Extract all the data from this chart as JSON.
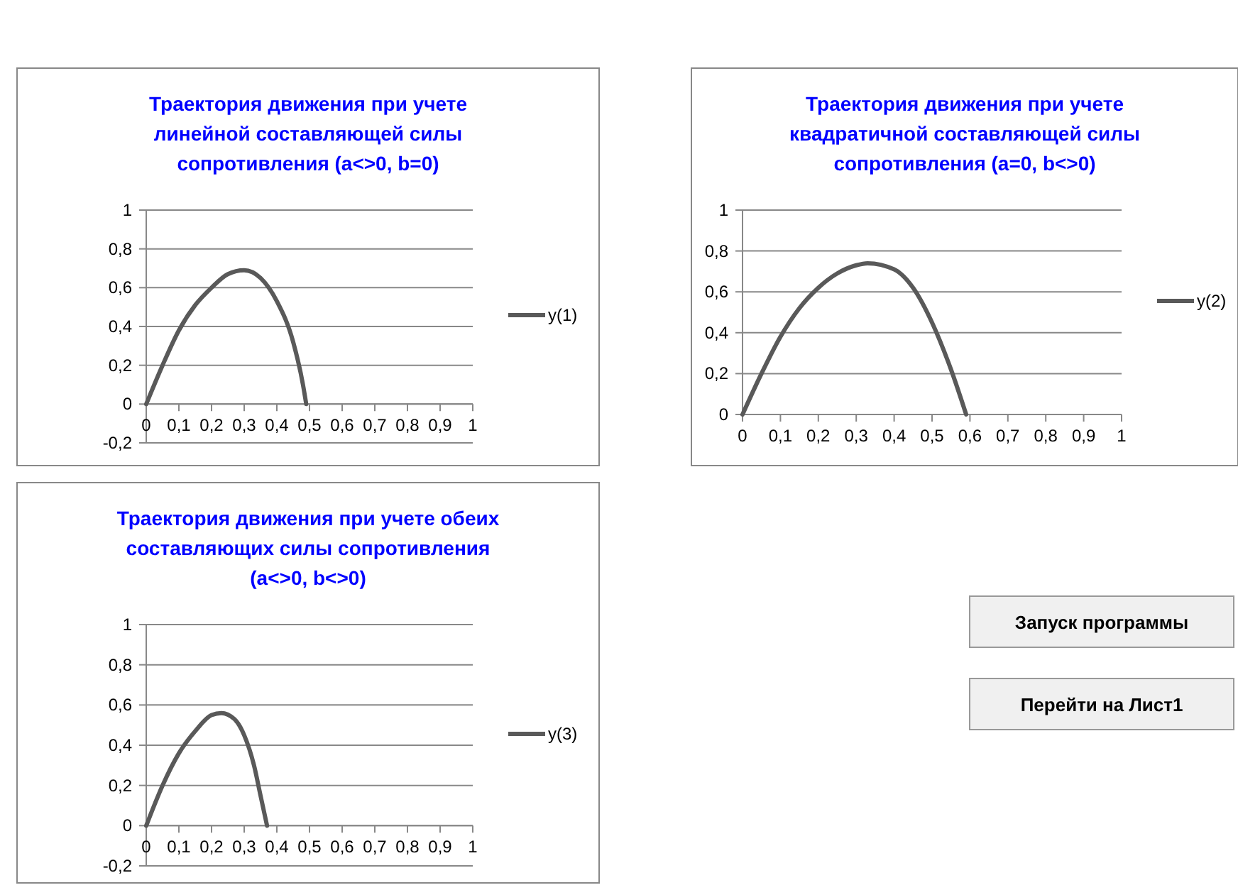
{
  "chart_data": [
    {
      "type": "line",
      "title": "Траектория движения при учете линейной составляющей силы сопротивления (a<>0, b=0)",
      "legend": "right",
      "grid": "y",
      "xlim": [
        0,
        1
      ],
      "xticks": [
        {
          "value": 0,
          "label": "0"
        },
        {
          "value": 0.1,
          "label": "0,1"
        },
        {
          "value": 0.2,
          "label": "0,2"
        },
        {
          "value": 0.3,
          "label": "0,3"
        },
        {
          "value": 0.4,
          "label": "0,4"
        },
        {
          "value": 0.5,
          "label": "0,5"
        },
        {
          "value": 0.6,
          "label": "0,6"
        },
        {
          "value": 0.7,
          "label": "0,7"
        },
        {
          "value": 0.8,
          "label": "0,8"
        },
        {
          "value": 0.9,
          "label": "0,9"
        },
        {
          "value": 1,
          "label": "1"
        }
      ],
      "ylim": [
        -0.2,
        1
      ],
      "yticks": [
        {
          "value": -0.2,
          "label": "-0,2"
        },
        {
          "value": 0,
          "label": "0"
        },
        {
          "value": 0.2,
          "label": "0,2"
        },
        {
          "value": 0.4,
          "label": "0,4"
        },
        {
          "value": 0.6,
          "label": "0,6"
        },
        {
          "value": 0.8,
          "label": "0,8"
        },
        {
          "value": 1,
          "label": "1"
        }
      ],
      "series": [
        {
          "name": "y(1)",
          "color": "#595959",
          "x": [
            0,
            0.05,
            0.1,
            0.15,
            0.2,
            0.25,
            0.3,
            0.35,
            0.4,
            0.45,
            0.48,
            0.49
          ],
          "values": [
            0,
            0.2,
            0.38,
            0.51,
            0.6,
            0.67,
            0.69,
            0.65,
            0.53,
            0.32,
            0.1,
            0
          ]
        }
      ]
    },
    {
      "type": "line",
      "title": "Траектория движения при учете квадратичной составляющей силы сопротивления (a=0, b<>0)",
      "legend": "right",
      "grid": "y",
      "xlim": [
        0,
        1
      ],
      "xticks": [
        {
          "value": 0,
          "label": "0"
        },
        {
          "value": 0.1,
          "label": "0,1"
        },
        {
          "value": 0.2,
          "label": "0,2"
        },
        {
          "value": 0.3,
          "label": "0,3"
        },
        {
          "value": 0.4,
          "label": "0,4"
        },
        {
          "value": 0.5,
          "label": "0,5"
        },
        {
          "value": 0.6,
          "label": "0,6"
        },
        {
          "value": 0.7,
          "label": "0,7"
        },
        {
          "value": 0.8,
          "label": "0,8"
        },
        {
          "value": 0.9,
          "label": "0,9"
        },
        {
          "value": 1,
          "label": "1"
        }
      ],
      "ylim": [
        0,
        1
      ],
      "yticks": [
        {
          "value": 0,
          "label": "0"
        },
        {
          "value": 0.2,
          "label": "0,2"
        },
        {
          "value": 0.4,
          "label": "0,4"
        },
        {
          "value": 0.6,
          "label": "0,6"
        },
        {
          "value": 0.8,
          "label": "0,8"
        },
        {
          "value": 1,
          "label": "1"
        }
      ],
      "series": [
        {
          "name": "y(2)",
          "color": "#595959",
          "x": [
            0,
            0.05,
            0.1,
            0.15,
            0.2,
            0.25,
            0.3,
            0.33,
            0.4,
            0.45,
            0.5,
            0.55,
            0.59
          ],
          "values": [
            0,
            0.2,
            0.38,
            0.52,
            0.62,
            0.69,
            0.73,
            0.74,
            0.71,
            0.62,
            0.45,
            0.22,
            0
          ]
        }
      ]
    },
    {
      "type": "line",
      "title": "Траектория движения при учете обеих составляющих силы сопротивления (a<>0, b<>0)",
      "legend": "right",
      "grid": "y",
      "xlim": [
        0,
        1
      ],
      "xticks": [
        {
          "value": 0,
          "label": "0"
        },
        {
          "value": 0.1,
          "label": "0,1"
        },
        {
          "value": 0.2,
          "label": "0,2"
        },
        {
          "value": 0.3,
          "label": "0,3"
        },
        {
          "value": 0.4,
          "label": "0,4"
        },
        {
          "value": 0.5,
          "label": "0,5"
        },
        {
          "value": 0.6,
          "label": "0,6"
        },
        {
          "value": 0.7,
          "label": "0,7"
        },
        {
          "value": 0.8,
          "label": "0,8"
        },
        {
          "value": 0.9,
          "label": "0,9"
        },
        {
          "value": 1,
          "label": "1"
        }
      ],
      "ylim": [
        -0.2,
        1
      ],
      "yticks": [
        {
          "value": -0.2,
          "label": "-0,2"
        },
        {
          "value": 0,
          "label": "0"
        },
        {
          "value": 0.2,
          "label": "0,2"
        },
        {
          "value": 0.4,
          "label": "0,4"
        },
        {
          "value": 0.6,
          "label": "0,6"
        },
        {
          "value": 0.8,
          "label": "0,8"
        },
        {
          "value": 1,
          "label": "1"
        }
      ],
      "series": [
        {
          "name": "y(3)",
          "color": "#595959",
          "x": [
            0,
            0.05,
            0.1,
            0.15,
            0.2,
            0.23,
            0.27,
            0.3,
            0.33,
            0.35,
            0.37
          ],
          "values": [
            0,
            0.2,
            0.36,
            0.47,
            0.55,
            0.56,
            0.53,
            0.45,
            0.3,
            0.15,
            0
          ]
        }
      ]
    },
    {
      "type": "other",
      "annotations": [
        "Запуск программы",
        "Перейти на Лист1"
      ]
    }
  ]
}
